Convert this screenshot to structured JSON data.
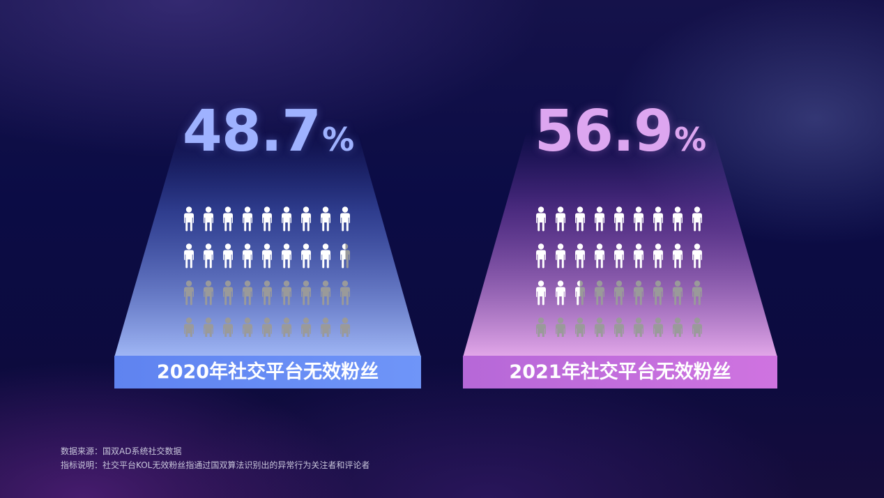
{
  "chart_data": [
    {
      "type": "pictogram",
      "value_percent": 48.7,
      "value_text": "48.7",
      "unit": "%",
      "label": "2020年社交平台无效粉丝",
      "icons_total": 36,
      "icons_per_row": 9,
      "highlight_color": "#ffffff",
      "base_color": "#9a9a9a",
      "accent_color": "#9fb2ff"
    },
    {
      "type": "pictogram",
      "value_percent": 56.9,
      "value_text": "56.9",
      "unit": "%",
      "label": "2021年社交平台无效粉丝",
      "icons_total": 36,
      "icons_per_row": 9,
      "highlight_color": "#ffffff",
      "base_color": "#9a9a9a",
      "accent_color": "#dda6f0"
    }
  ],
  "notes": {
    "source": "数据来源：国双AD系统社交数据",
    "definition": "指标说明：社交平台KOL无效粉丝指通过国双算法识别出的异常行为关注者和评论者"
  },
  "icon": "person-icon"
}
